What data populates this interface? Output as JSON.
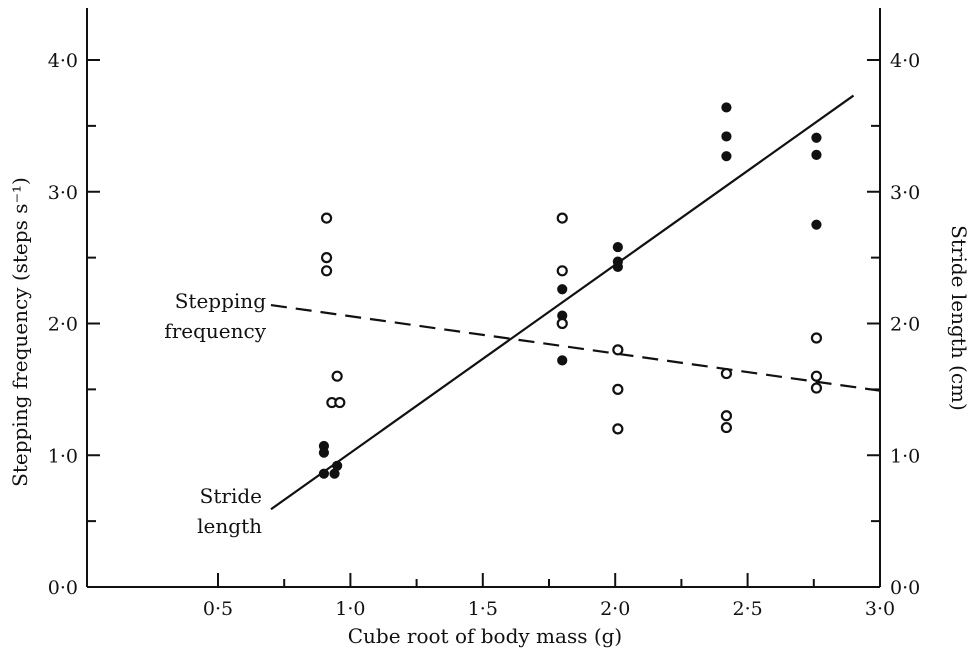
{
  "chart_data": {
    "type": "scatter",
    "xlabel": "Cube root of body mass (g)",
    "ylabel_left": "Stepping frequency (steps s⁻¹)",
    "ylabel_right": "Stride length (cm)",
    "xlim": [
      0,
      3.0
    ],
    "ylim_left": [
      0,
      4.4
    ],
    "ylim_right": [
      0,
      4.4
    ],
    "x_ticks": [
      0.5,
      1.0,
      1.5,
      2.0,
      2.5,
      3.0
    ],
    "x_tick_labels": [
      "0·5",
      "1·0",
      "1·5",
      "2·0",
      "2·5",
      "3·0"
    ],
    "y_left_ticks": [
      0,
      1.0,
      2.0,
      3.0,
      4.0
    ],
    "y_left_tick_labels": [
      "0·0",
      "1·0",
      "2·0",
      "3·0",
      "4·0"
    ],
    "y_right_ticks": [
      0,
      1.0,
      2.0,
      3.0,
      4.0
    ],
    "y_right_tick_labels": [
      "0·0",
      "1·0",
      "2·0",
      "3·0",
      "4·0"
    ],
    "series": [
      {
        "name": "Stride length",
        "marker": "filled-circle",
        "axis": "right",
        "points": [
          [
            0.9,
            1.07
          ],
          [
            0.9,
            1.02
          ],
          [
            0.9,
            0.86
          ],
          [
            0.94,
            0.86
          ],
          [
            0.95,
            0.92
          ],
          [
            1.8,
            2.26
          ],
          [
            1.8,
            2.06
          ],
          [
            1.8,
            1.72
          ],
          [
            2.01,
            2.58
          ],
          [
            2.01,
            2.47
          ],
          [
            2.01,
            2.43
          ],
          [
            2.42,
            3.64
          ],
          [
            2.42,
            3.42
          ],
          [
            2.42,
            3.27
          ],
          [
            2.76,
            3.41
          ],
          [
            2.76,
            3.28
          ],
          [
            2.76,
            2.75
          ]
        ],
        "fit": {
          "style": "solid",
          "from": [
            0.7,
            0.59
          ],
          "to": [
            2.9,
            3.73
          ]
        }
      },
      {
        "name": "Stepping frequency",
        "marker": "open-circle",
        "axis": "left",
        "points": [
          [
            0.91,
            2.8
          ],
          [
            0.91,
            2.5
          ],
          [
            0.91,
            2.4
          ],
          [
            0.95,
            1.6
          ],
          [
            0.93,
            1.4
          ],
          [
            0.96,
            1.4
          ],
          [
            1.8,
            2.8
          ],
          [
            1.8,
            2.4
          ],
          [
            1.8,
            2.0
          ],
          [
            2.01,
            1.8
          ],
          [
            2.01,
            1.5
          ],
          [
            2.01,
            1.2
          ],
          [
            2.42,
            1.62
          ],
          [
            2.42,
            1.3
          ],
          [
            2.42,
            1.21
          ],
          [
            2.76,
            1.89
          ],
          [
            2.76,
            1.6
          ],
          [
            2.76,
            1.51
          ]
        ],
        "fit": {
          "style": "dashed",
          "from": [
            0.7,
            2.14
          ],
          "to": [
            3.0,
            1.49
          ]
        }
      }
    ],
    "annotations": {
      "stepping": [
        "Stepping",
        "frequency"
      ],
      "stride": [
        "Stride",
        "length"
      ]
    },
    "grid": false,
    "legend": "none"
  }
}
